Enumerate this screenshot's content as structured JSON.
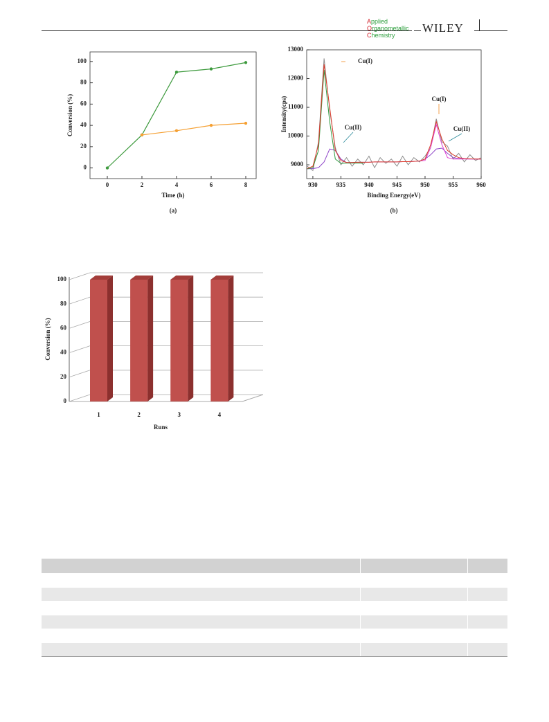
{
  "header": {
    "journal": [
      "Applied",
      "Organometallic",
      "Chemistry"
    ],
    "publisher": "WILEY"
  },
  "figure_a": {
    "type": "line",
    "panel": "(a)",
    "xlabel": "Time (h)",
    "ylabel": "Conversion (%)",
    "x": [
      0,
      2,
      4,
      6,
      8
    ],
    "series": [
      {
        "color": "#3d9a3d",
        "values": [
          0,
          31,
          90,
          93,
          99
        ]
      },
      {
        "color": "#f5a033",
        "values": [
          null,
          31,
          35,
          40,
          42
        ]
      }
    ],
    "xlim": [
      -1,
      8.6
    ],
    "ylim": [
      -10,
      109
    ],
    "xticks": [
      0,
      2,
      4,
      6,
      8
    ],
    "yticks": [
      0,
      20,
      40,
      60,
      80,
      100
    ]
  },
  "figure_b": {
    "type": "line",
    "panel": "(b)",
    "xlabel": "Binding Energy(eV)",
    "ylabel": "Intensity(cps)",
    "x": [
      929,
      930,
      931,
      932,
      933,
      934,
      935,
      936,
      937,
      938,
      939,
      940,
      941,
      942,
      943,
      944,
      945,
      946,
      947,
      948,
      949,
      950,
      951,
      952,
      953,
      954,
      955,
      956,
      957,
      958,
      959,
      960
    ],
    "series": [
      {
        "color": "#8c8c8c",
        "values": [
          8950,
          8800,
          9800,
          12700,
          10900,
          9600,
          9000,
          9250,
          8950,
          9200,
          9000,
          9300,
          8900,
          9250,
          9050,
          9200,
          8950,
          9300,
          9000,
          9250,
          9100,
          9300,
          9600,
          10600,
          9800,
          9650,
          9200,
          9400,
          9100,
          9350,
          9150,
          9250
        ]
      },
      {
        "color": "#8e44c8",
        "values": [
          8860,
          8870,
          8900,
          9100,
          9550,
          9500,
          9200,
          9080,
          9080,
          9090,
          9090,
          9090,
          9100,
          9100,
          9100,
          9100,
          9100,
          9110,
          9110,
          9120,
          9130,
          9200,
          9350,
          9550,
          9580,
          9400,
          9250,
          9220,
          9210,
          9200,
          9200,
          9200
        ]
      },
      {
        "color": "#2e9a3e",
        "values": [
          8860,
          8900,
          9500,
          12300,
          10500,
          9200,
          9050,
          9060,
          9060,
          9060,
          9060,
          null,
          null,
          null,
          null,
          null,
          null,
          null,
          null,
          null,
          null,
          null,
          null,
          null,
          null,
          null,
          null,
          null,
          null,
          null,
          null,
          null
        ]
      },
      {
        "color": "#e040d0",
        "values": [
          null,
          null,
          null,
          null,
          null,
          null,
          null,
          null,
          null,
          null,
          null,
          null,
          null,
          null,
          null,
          null,
          null,
          null,
          null,
          null,
          9130,
          9150,
          9600,
          10400,
          9700,
          9250,
          9200,
          9200,
          9200,
          9200,
          9200,
          9200
        ]
      },
      {
        "color": "#e03c2c",
        "values": [
          8870,
          8950,
          9700,
          12500,
          11000,
          9500,
          9150,
          9080,
          9080,
          9090,
          9090,
          9090,
          9100,
          9100,
          9100,
          9100,
          9100,
          9110,
          9110,
          9120,
          9130,
          9200,
          9700,
          10500,
          9900,
          9500,
          9350,
          9250,
          9220,
          9210,
          9200,
          9200
        ]
      }
    ],
    "annotations": [
      "Cu(I)",
      "Cu(II)",
      "Cu(I)",
      "Cu(II)"
    ],
    "xlim": [
      928.9,
      960
    ],
    "ylim": [
      8520,
      13000
    ],
    "xticks": [
      930,
      935,
      940,
      945,
      950,
      955,
      960
    ],
    "yticks": [
      9000,
      10000,
      11000,
      12000,
      13000
    ]
  },
  "figure_c": {
    "type": "bar",
    "xlabel": "Runs",
    "ylabel": "Conversion (%)",
    "categories": [
      "1",
      "2",
      "3",
      "4"
    ],
    "values": [
      100,
      100,
      100,
      100
    ],
    "color": "#c0504d",
    "ylim": [
      0,
      100
    ],
    "yticks": [
      0,
      20,
      40,
      60,
      80,
      100
    ],
    "grid": true
  }
}
